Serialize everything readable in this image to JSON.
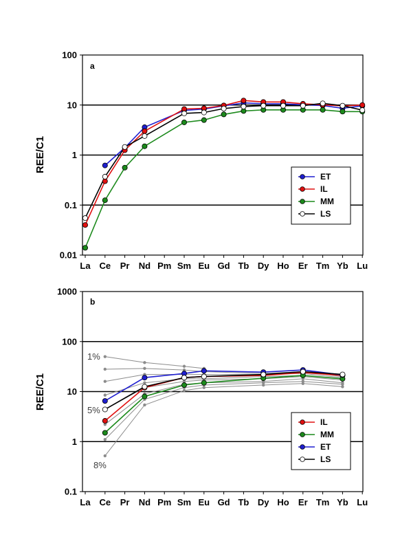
{
  "chart_data": [
    {
      "type": "line",
      "panel": "a",
      "ylabel": "REE/C1",
      "yscale": "log",
      "ylim": [
        0.01,
        100
      ],
      "ytick_labels": [
        "0.01",
        "0.1",
        "1",
        "10",
        "100"
      ],
      "categories": [
        "La",
        "Ce",
        "Pr",
        "Nd",
        "Pm",
        "Sm",
        "Eu",
        "Gd",
        "Tb",
        "Dy",
        "Ho",
        "Er",
        "Tm",
        "Yb",
        "Lu"
      ],
      "grid": "horizontal major lines",
      "legend": "right, lower-middle",
      "series": [
        {
          "name": "ET",
          "color": "#1f1fd0",
          "marker": "filled",
          "values": [
            null,
            0.62,
            1.4,
            3.6,
            null,
            7.8,
            8.3,
            9.6,
            11.0,
            10.6,
            10.6,
            10.1,
            9.8,
            8.6,
            9.6
          ]
        },
        {
          "name": "IL",
          "color": "#e01010",
          "marker": "filled",
          "values": [
            0.04,
            0.3,
            1.25,
            3.0,
            null,
            8.3,
            8.6,
            9.8,
            12.3,
            11.5,
            11.5,
            10.6,
            10.1,
            9.6,
            10.0
          ]
        },
        {
          "name": "MM",
          "color": "#1c8a1c",
          "marker": "filled",
          "values": [
            0.014,
            0.125,
            0.56,
            1.5,
            null,
            4.5,
            5.0,
            6.5,
            7.6,
            8.0,
            8.0,
            8.0,
            8.0,
            7.4,
            7.4
          ]
        },
        {
          "name": "LS",
          "color": "#000000",
          "marker": "open",
          "values": [
            0.055,
            0.37,
            1.45,
            2.4,
            null,
            6.8,
            7.1,
            8.5,
            9.3,
            9.7,
            9.7,
            9.7,
            10.8,
            9.7,
            7.9
          ]
        }
      ]
    },
    {
      "type": "line",
      "panel": "b",
      "ylabel": "REE/C1",
      "yscale": "log",
      "ylim": [
        0.1,
        1000
      ],
      "ytick_labels": [
        "0.1",
        "1",
        "10",
        "100",
        "1000"
      ],
      "categories": [
        "La",
        "Ce",
        "Pr",
        "Nd",
        "Pm",
        "Sm",
        "Eu",
        "Gd",
        "Tb",
        "Dy",
        "Ho",
        "Er",
        "Tm",
        "Yb",
        "Lu"
      ],
      "grid": "horizontal major lines",
      "legend": "right, lower",
      "annotations": [
        "1%",
        "5%",
        "8%"
      ],
      "series": [
        {
          "name": "IL",
          "color": "#e01010",
          "marker": "filled",
          "values": [
            null,
            2.6,
            null,
            12.0,
            null,
            19.0,
            20.0,
            null,
            null,
            21.0,
            null,
            24.0,
            null,
            21.0,
            null
          ]
        },
        {
          "name": "MM",
          "color": "#1c8a1c",
          "marker": "filled",
          "values": [
            null,
            1.5,
            null,
            8.0,
            null,
            13.5,
            15.0,
            null,
            null,
            18.5,
            null,
            21.0,
            null,
            18.0,
            null
          ]
        },
        {
          "name": "ET",
          "color": "#1f1fd0",
          "marker": "filled",
          "values": [
            null,
            6.5,
            null,
            19.0,
            null,
            23.0,
            26.0,
            null,
            null,
            24.5,
            null,
            27.0,
            null,
            21.5,
            null
          ]
        },
        {
          "name": "LS",
          "color": "#000000",
          "marker": "open",
          "values": [
            null,
            4.4,
            null,
            12.5,
            null,
            19.0,
            20.0,
            null,
            null,
            22.0,
            null,
            25.0,
            null,
            22.0,
            null
          ]
        }
      ],
      "model_curves": {
        "color": "#8c8c8c",
        "curves": [
          [
            null,
            50,
            null,
            38,
            null,
            32,
            29,
            null,
            null,
            null,
            null,
            null,
            null,
            null,
            null
          ],
          [
            null,
            28,
            null,
            29,
            null,
            27,
            25,
            null,
            null,
            23,
            null,
            25,
            null,
            20,
            null
          ],
          [
            null,
            16,
            null,
            22,
            null,
            22,
            22,
            null,
            null,
            22,
            null,
            23,
            null,
            19,
            null
          ],
          [
            null,
            8.5,
            null,
            15,
            null,
            18,
            18,
            null,
            null,
            20,
            null,
            21,
            null,
            18,
            null
          ],
          [
            null,
            4.4,
            null,
            12,
            null,
            16,
            17,
            null,
            null,
            18,
            null,
            20,
            null,
            17,
            null
          ],
          [
            null,
            2.2,
            null,
            9,
            null,
            14,
            15,
            null,
            null,
            16,
            null,
            18,
            null,
            15,
            null
          ],
          [
            null,
            1.1,
            null,
            7,
            null,
            12,
            13.5,
            null,
            null,
            15,
            null,
            16,
            null,
            14,
            null
          ],
          [
            null,
            0.52,
            null,
            5.4,
            null,
            10.5,
            12,
            null,
            null,
            13.5,
            null,
            14.5,
            null,
            12.5,
            null
          ]
        ]
      }
    }
  ]
}
